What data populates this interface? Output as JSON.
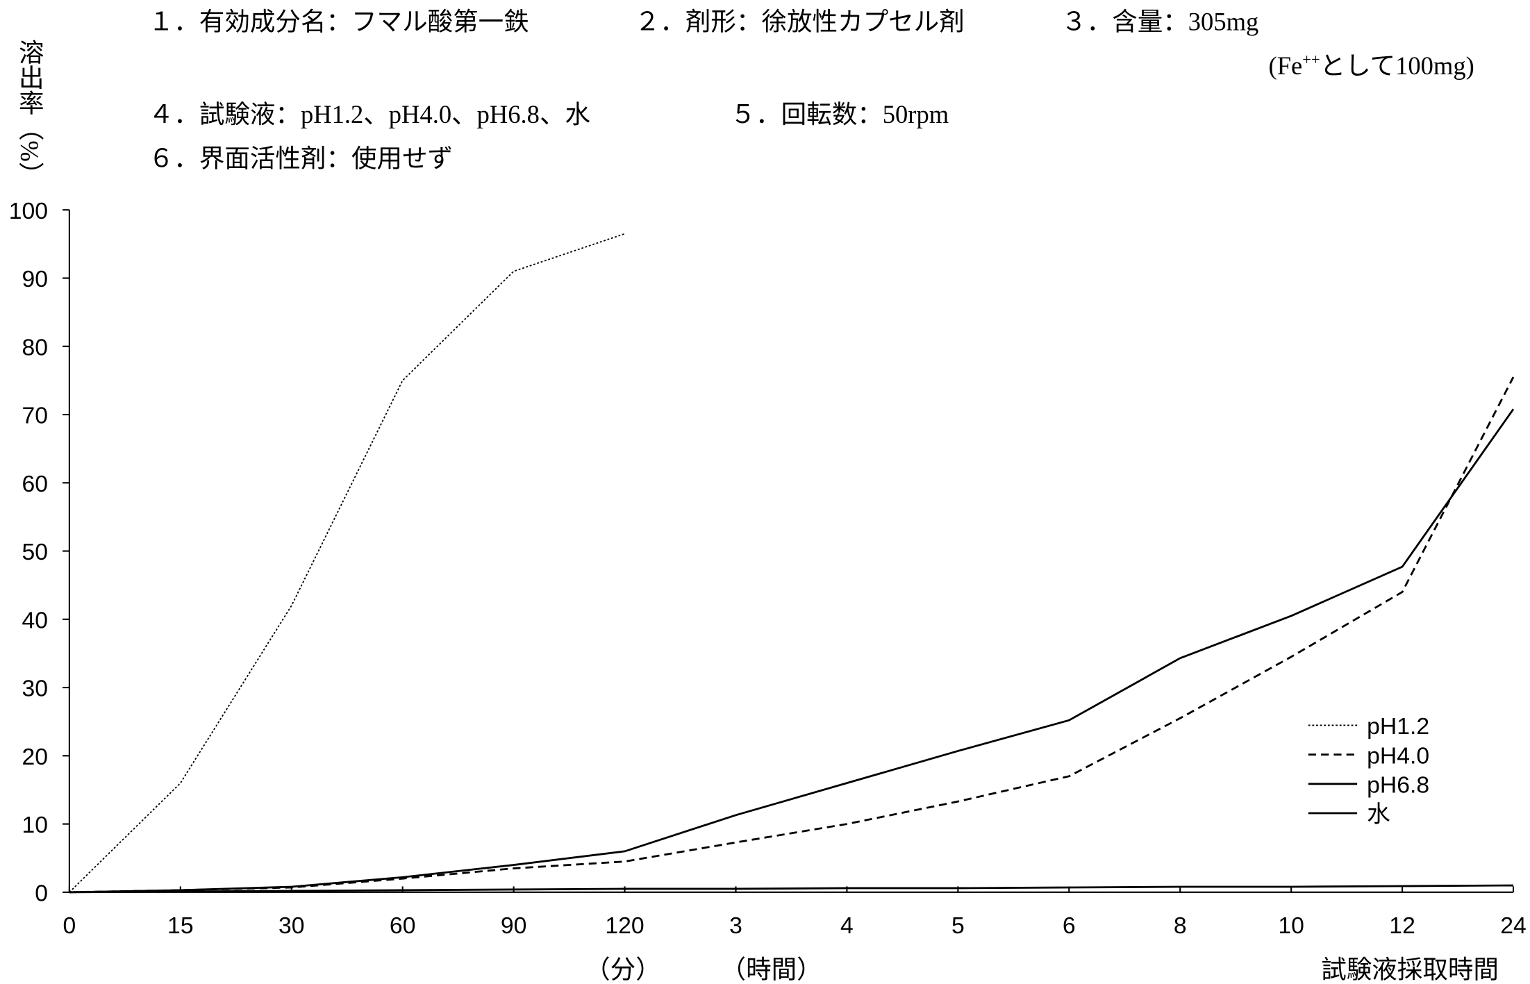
{
  "header": {
    "lines": [
      [
        "１．有効成分名：フマル酸第一鉄",
        "２．剤形：徐放性カプセル剤",
        "３．含量：305mg"
      ],
      [
        "４．試験液：pH1.2、pH4.0、pH6.8、水",
        "５．回転数：50rpm"
      ],
      [
        "６．界面活性剤：使用せず"
      ]
    ],
    "note": [
      "(Fe",
      "++",
      "として100mg)"
    ]
  },
  "chart_data": {
    "type": "line",
    "y_label": "溶出率（%）",
    "x_label": "試験液採取時間",
    "unit_labels": [
      "（分）",
      "（時間）"
    ],
    "categories": [
      "0",
      "15",
      "30",
      "60",
      "90",
      "120",
      "3",
      "4",
      "5",
      "6",
      "8",
      "10",
      "12",
      "24"
    ],
    "ylim": [
      0,
      100
    ],
    "yticks": [
      0,
      10,
      20,
      30,
      40,
      50,
      60,
      70,
      80,
      90,
      100
    ],
    "legend": "lower right",
    "series": [
      {
        "name": "pH1.2",
        "color": "#000000",
        "dash": "2,2",
        "values": [
          0,
          16,
          42,
          75,
          91,
          96.5,
          null,
          null,
          null,
          null,
          null,
          null,
          null,
          null
        ]
      },
      {
        "name": "pH4.0",
        "color": "#000000",
        "dash": "8,5",
        "values": [
          0,
          0.3,
          0.7,
          2,
          3.5,
          4.5,
          7.3,
          10,
          13.3,
          17,
          25.5,
          34.5,
          44,
          75.5
        ]
      },
      {
        "name": "pH6.8",
        "color": "#000000",
        "dash": "none",
        "values": [
          0,
          0.3,
          0.8,
          2.2,
          4,
          6,
          11.3,
          16,
          20.7,
          25.2,
          34.3,
          40.5,
          47.7,
          70.8
        ]
      },
      {
        "name": "水",
        "color": "#000000",
        "dash": "none",
        "values": [
          0,
          0.1,
          0.2,
          0.3,
          0.4,
          0.5,
          0.5,
          0.6,
          0.6,
          0.7,
          0.8,
          0.8,
          0.9,
          1.0
        ]
      }
    ]
  }
}
